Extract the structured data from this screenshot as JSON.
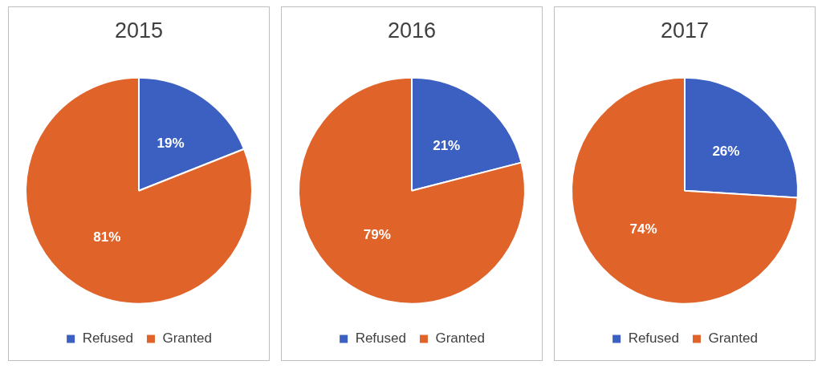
{
  "chart_data": [
    {
      "type": "pie",
      "title": "2015",
      "categories": [
        "Refused",
        "Granted"
      ],
      "values": [
        19,
        81
      ],
      "value_labels": [
        "19%",
        "81%"
      ],
      "colors": [
        "#3c60c2",
        "#e0632a"
      ],
      "data_labels": true,
      "legend": "bottom"
    },
    {
      "type": "pie",
      "title": "2016",
      "categories": [
        "Refused",
        "Granted"
      ],
      "values": [
        21,
        79
      ],
      "value_labels": [
        "21%",
        "79%"
      ],
      "colors": [
        "#3c60c2",
        "#e0632a"
      ],
      "data_labels": true,
      "legend": "bottom"
    },
    {
      "type": "pie",
      "title": "2017",
      "categories": [
        "Refused",
        "Granted"
      ],
      "values": [
        26,
        74
      ],
      "value_labels": [
        "26%",
        "74%"
      ],
      "colors": [
        "#3c60c2",
        "#e0632a"
      ],
      "data_labels": true,
      "legend": "bottom"
    }
  ]
}
